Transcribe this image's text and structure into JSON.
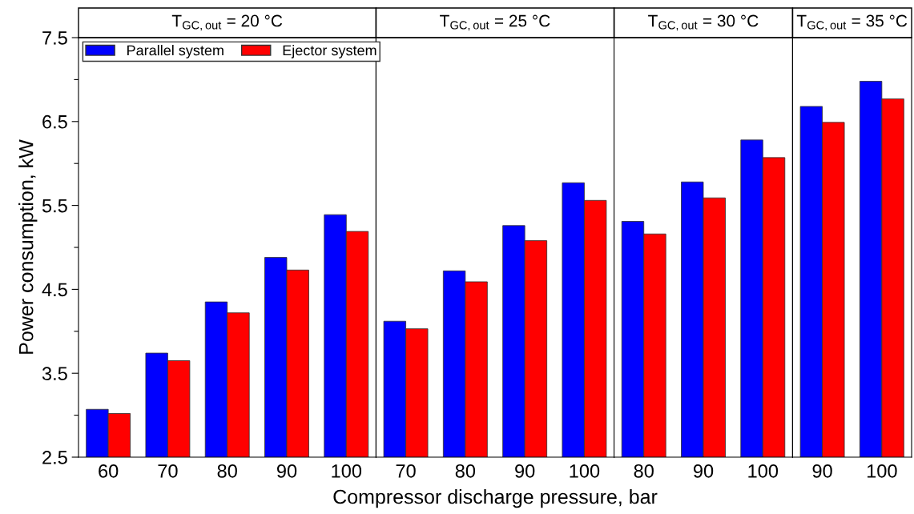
{
  "chart_data": [
    {
      "type": "bar",
      "title": "T$_{GC,out}$ = 20 °C",
      "ylabel": "Power consumption, kW",
      "xlabel": "Compressor discharge pressure, bar",
      "categories": [
        "60",
        "70",
        "80",
        "90",
        "100"
      ],
      "ylim": [
        2.5,
        7.5
      ],
      "yticks": [
        2.5,
        {
          "value": 3,
          "label": null
        },
        3.5,
        {
          "value": 4,
          "label": null
        },
        4.5,
        {
          "value": 5,
          "label": null
        },
        5.5,
        {
          "value": 6,
          "label": null
        },
        6.5,
        {
          "value": 7,
          "label": null
        },
        7.5
      ],
      "legend": "top left",
      "series": [
        {
          "name": "Parallel system",
          "color": "#0000ff",
          "values": [
            3.07,
            3.74,
            4.35,
            4.88,
            5.39
          ]
        },
        {
          "name": "Ejector system",
          "color": "#ff0000",
          "values": [
            3.02,
            3.65,
            4.22,
            4.73,
            5.19
          ]
        }
      ]
    },
    {
      "type": "bar",
      "title": "T$_{GC,out}$ = 25 °C",
      "categories": [
        "70",
        "80",
        "90",
        "100"
      ],
      "ylim": [
        2.5,
        7.5
      ],
      "tick_labels": "x",
      "series": [
        {
          "color": "#0000ff",
          "values": [
            4.12,
            4.72,
            5.26,
            5.77
          ]
        },
        {
          "color": "#ff0000",
          "values": [
            4.03,
            4.59,
            5.08,
            5.56
          ]
        }
      ]
    },
    {
      "type": "bar",
      "title": "T$_{GC,out}$ = 30 °C",
      "categories": [
        "80",
        "90",
        "100"
      ],
      "ylim": [
        2.5,
        7.5
      ],
      "tick_labels": "x",
      "series": [
        {
          "color": "#0000ff",
          "values": [
            5.31,
            5.78,
            6.28
          ]
        },
        {
          "color": "#ff0000",
          "values": [
            5.16,
            5.59,
            6.07
          ]
        }
      ]
    },
    {
      "type": "bar",
      "title": "T$_{GC,out}$ = 35 °C",
      "categories": [
        "90",
        "100"
      ],
      "ylim": [
        2.5,
        7.5
      ],
      "tick_labels": "x",
      "series": [
        {
          "color": "#0000ff",
          "values": [
            6.68,
            6.98
          ]
        },
        {
          "color": "#ff0000",
          "values": [
            6.49,
            6.77
          ]
        }
      ]
    }
  ]
}
